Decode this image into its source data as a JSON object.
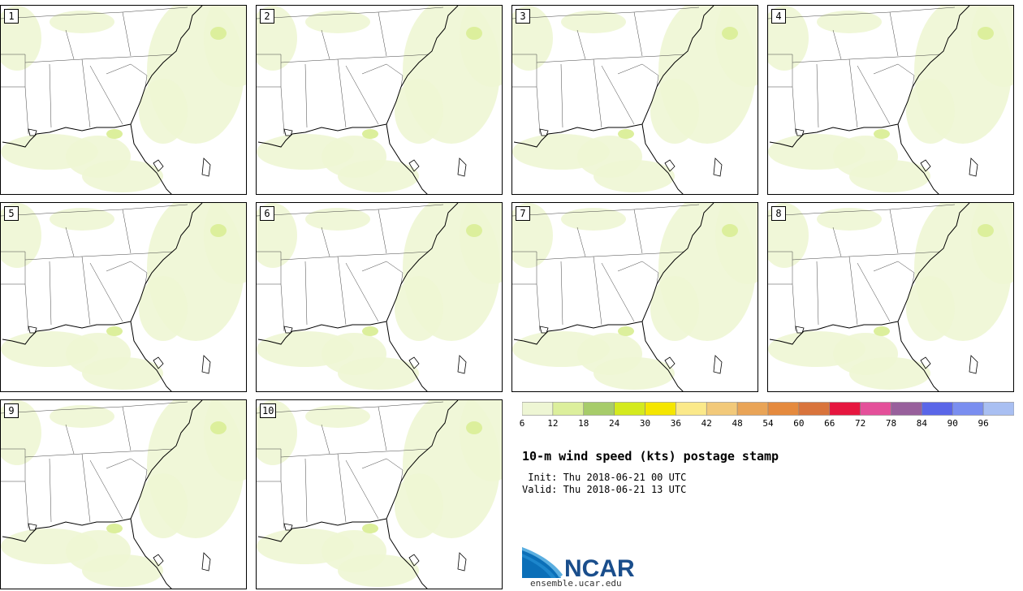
{
  "panels": [
    {
      "label": "1"
    },
    {
      "label": "2"
    },
    {
      "label": "3"
    },
    {
      "label": "4"
    },
    {
      "label": "5"
    },
    {
      "label": "6"
    },
    {
      "label": "7"
    },
    {
      "label": "8"
    },
    {
      "label": "9"
    },
    {
      "label": "10"
    }
  ],
  "colorbar": {
    "colors": [
      "#eef6d4",
      "#dcef9c",
      "#a7cc6a",
      "#d4ea1e",
      "#f5e600",
      "#fbe98a",
      "#f2c97a",
      "#e9a457",
      "#e58a3e",
      "#d9743c",
      "#e6163f",
      "#e4509a",
      "#98609c",
      "#5a66e8",
      "#7a8ef0",
      "#a9bff2"
    ],
    "ticks": [
      "6",
      "12",
      "18",
      "24",
      "30",
      "36",
      "42",
      "48",
      "54",
      "60",
      "66",
      "72",
      "78",
      "84",
      "90",
      "96"
    ]
  },
  "title": "10-m wind speed (kts) postage stamp",
  "init_text": " Init: Thu 2018-06-21 00 UTC",
  "valid_text": "Valid: Thu 2018-06-21 13 UTC",
  "logo": {
    "text": "NCAR",
    "url": "ensemble.ucar.edu"
  }
}
